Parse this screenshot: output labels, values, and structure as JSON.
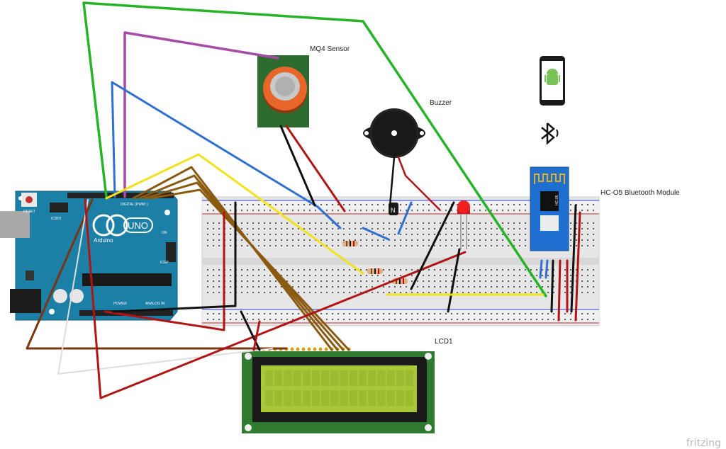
{
  "labels": {
    "mq4": "MQ4 Sensor",
    "buzzer": "Buzzer",
    "hc05": "HC-O5 Bluetooth Module",
    "lcd": "LCD1",
    "brand": "fritzing"
  },
  "arduino": {
    "model": "UNO",
    "brand": "Arduino",
    "reset": "RESET",
    "icsp": "ICSP",
    "icsp2": "ICSP2",
    "digital": "DIGITAL (PWM~)",
    "power": "POWER",
    "analog": "ANALOG IN",
    "on": "ON"
  },
  "hc05_chip": "HC-05",
  "transistor_mark": "N",
  "icons": [
    "android-phone-icon",
    "bluetooth-icon"
  ],
  "colors": {
    "arduino": "#1b7fa6",
    "mq4_board": "#2e6b2e",
    "mq4_cap": "#e8662a",
    "lcd_board": "#2f7a2f",
    "lcd_screen": "#a8c83a",
    "hc05_board": "#1e6fd0",
    "breadboard": "#e9e9e9",
    "wire_green": "#27b327",
    "wire_purple": "#a64ca6",
    "wire_blue": "#2f6fd0",
    "wire_yellow": "#f0e21c",
    "wire_brown": "#8a5a10",
    "wire_red": "#b01515",
    "wire_black": "#111111",
    "wire_darkbrown": "#7a3510",
    "wire_white": "#dddddd"
  }
}
